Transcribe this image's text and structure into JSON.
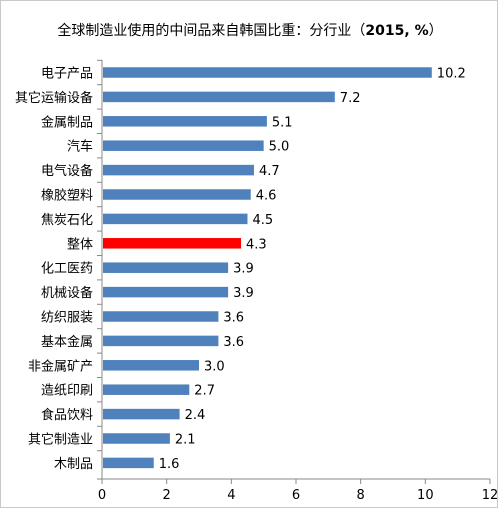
{
  "chart_data": {
    "type": "bar",
    "orientation": "horizontal",
    "title_pre": "全球制造业使用的中间品来自韩国比重：分行业（",
    "title_bold": "2015, %",
    "title_post": "）",
    "categories": [
      "电子产品",
      "其它运输设备",
      "金属制品",
      "汽车",
      "电气设备",
      "橡胶塑料",
      "焦炭石化",
      "整体",
      "化工医药",
      "机械设备",
      "纺织服装",
      "基本金属",
      "非金属矿产",
      "造纸印刷",
      "食品饮料",
      "其它制造业",
      "木制品"
    ],
    "values": [
      10.2,
      7.2,
      5.1,
      5.0,
      4.7,
      4.6,
      4.5,
      4.3,
      3.9,
      3.9,
      3.6,
      3.6,
      3.0,
      2.7,
      2.4,
      2.1,
      1.6
    ],
    "value_labels": [
      "10.2",
      "7.2",
      "5.1",
      "5.0",
      "4.7",
      "4.6",
      "4.5",
      "4.3",
      "3.9",
      "3.9",
      "3.6",
      "3.6",
      "3.0",
      "2.7",
      "2.4",
      "2.1",
      "1.6"
    ],
    "highlight_category": "整体",
    "xlim": [
      0,
      12
    ],
    "xticks": [
      0,
      2,
      4,
      6,
      8,
      10,
      12
    ],
    "grid": false,
    "legend": "none",
    "colors": {
      "bar": "#4f81bd",
      "highlight": "#ff0000",
      "axis": "#888888"
    }
  }
}
